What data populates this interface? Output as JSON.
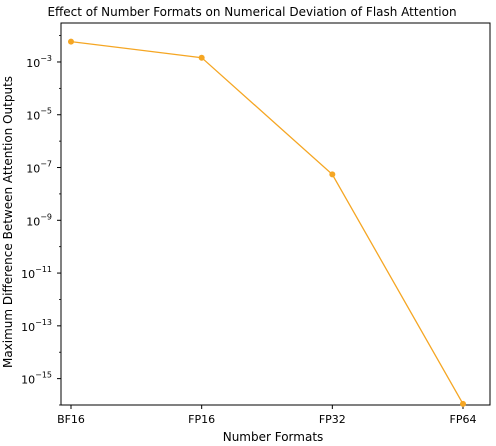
{
  "chart_data": {
    "type": "line",
    "title": "Effect of Number Formats on Numerical Deviation of Flash Attention",
    "xlabel": "Number Formats",
    "ylabel": "Maximum Difference Between Attention Outputs",
    "categories": [
      "BF16",
      "FP16",
      "FP32",
      "FP64"
    ],
    "series": [
      {
        "values": [
          0.0059,
          0.00145,
          5.5e-08,
          1.1e-16
        ],
        "color": "#f5a623"
      }
    ],
    "yscale": "log",
    "ylim": [
      1e-16,
      0.03
    ],
    "yticks": [
      {
        "base": "10",
        "exp": "−3",
        "value": 0.001
      },
      {
        "base": "10",
        "exp": "−5",
        "value": 1e-05
      },
      {
        "base": "10",
        "exp": "−7",
        "value": 1e-07
      },
      {
        "base": "10",
        "exp": "−9",
        "value": 1e-09
      },
      {
        "base": "10",
        "exp": "−11",
        "value": 1e-11
      },
      {
        "base": "10",
        "exp": "−13",
        "value": 1e-13
      },
      {
        "base": "10",
        "exp": "−15",
        "value": 1e-15
      }
    ],
    "grid": false,
    "legend": "none"
  }
}
